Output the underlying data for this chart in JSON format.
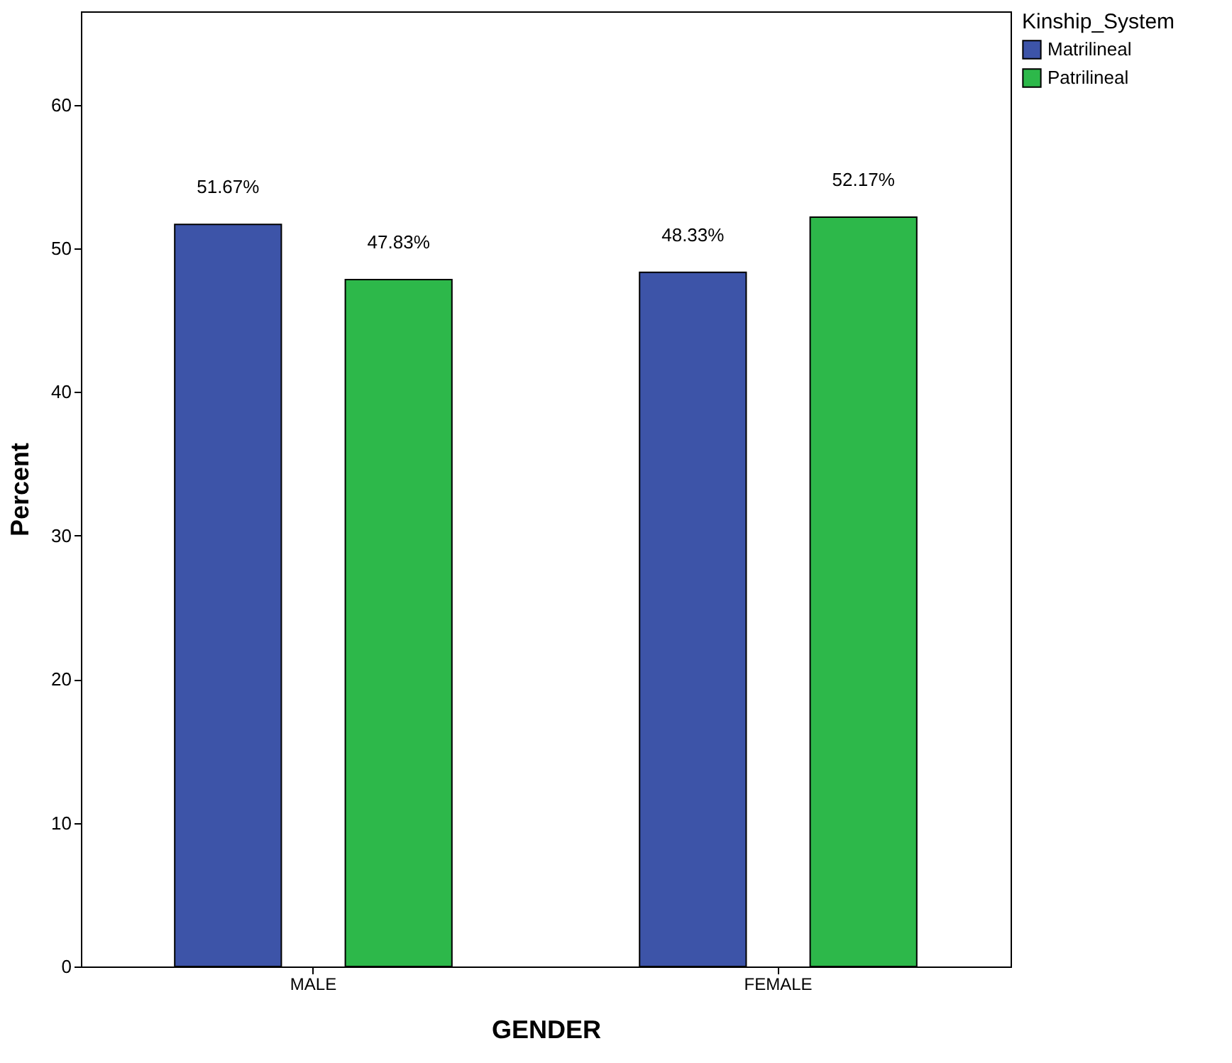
{
  "chart_data": {
    "type": "bar",
    "xlabel": "GENDER",
    "ylabel": "Percent",
    "legend_title": "Kinship_System",
    "legend": "top right",
    "categories": [
      "MALE",
      "FEMALE"
    ],
    "series": [
      {
        "name": "Matrilineal",
        "color": "#3d54a8",
        "values": [
          51.67,
          48.33
        ],
        "value_labels": [
          "51.67%",
          "48.33%"
        ]
      },
      {
        "name": "Patrilineal",
        "color": "#2db84a",
        "values": [
          47.83,
          52.17
        ],
        "value_labels": [
          "47.83%",
          "52.17%"
        ]
      }
    ],
    "ylim": [
      0,
      66.5
    ],
    "yticks": [
      0,
      10,
      20,
      30,
      40,
      50,
      60
    ],
    "grid": false
  }
}
